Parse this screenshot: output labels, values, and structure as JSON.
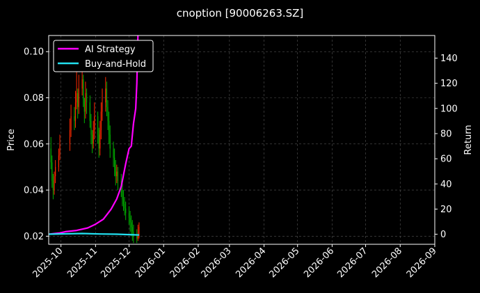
{
  "chart_data": {
    "type": "line",
    "title": "cnoption [90006263.SZ]",
    "ylabel_left": "Price",
    "ylabel_right": "Return",
    "x_ticks": [
      "2025-10",
      "2025-11",
      "2025-12",
      "2026-01",
      "2026-02",
      "2026-03",
      "2026-04",
      "2026-05",
      "2026-06",
      "2026-07",
      "2026-08",
      "2026-09"
    ],
    "x_range": [
      "2025-09-20",
      "2026-09-01"
    ],
    "y_left_range": [
      0.0165,
      0.107
    ],
    "y_left_ticks": [
      "0.02",
      "0.04",
      "0.06",
      "0.08",
      "0.10"
    ],
    "y_right_range": [
      -8,
      158
    ],
    "y_right_ticks": [
      "0",
      "20",
      "40",
      "60",
      "80",
      "100",
      "120",
      "140"
    ],
    "grid": true,
    "legend_position": "top-left",
    "colors": {
      "background": "#000000",
      "up": "#ff2a00",
      "down": "#00b000",
      "strategy": "#ff00ff",
      "buyhold": "#22e0f0"
    },
    "candles": {
      "dates": [
        "2025-09-22",
        "2025-09-23",
        "2025-09-24",
        "2025-09-25",
        "2025-09-26",
        "2025-09-29",
        "2025-09-30",
        "2025-10-09",
        "2025-10-10",
        "2025-10-13",
        "2025-10-14",
        "2025-10-15",
        "2025-10-16",
        "2025-10-17",
        "2025-10-20",
        "2025-10-21",
        "2025-10-22",
        "2025-10-23",
        "2025-10-24",
        "2025-10-27",
        "2025-10-28",
        "2025-10-29",
        "2025-10-30",
        "2025-10-31",
        "2025-11-03",
        "2025-11-04",
        "2025-11-05",
        "2025-11-06",
        "2025-11-07",
        "2025-11-10",
        "2025-11-11",
        "2025-11-12",
        "2025-11-13",
        "2025-11-14",
        "2025-11-17",
        "2025-11-18",
        "2025-11-19",
        "2025-11-20",
        "2025-11-21",
        "2025-11-24",
        "2025-11-25",
        "2025-11-26",
        "2025-11-27",
        "2025-11-28",
        "2025-12-01",
        "2025-12-02",
        "2025-12-03",
        "2025-12-04",
        "2025-12-05",
        "2025-12-08",
        "2025-12-09",
        "2025-12-10"
      ],
      "open": [
        0.058,
        0.052,
        0.044,
        0.04,
        0.046,
        0.05,
        0.055,
        0.06,
        0.066,
        0.072,
        0.07,
        0.078,
        0.082,
        0.076,
        0.084,
        0.088,
        0.08,
        0.074,
        0.082,
        0.078,
        0.07,
        0.064,
        0.06,
        0.066,
        0.072,
        0.064,
        0.058,
        0.066,
        0.074,
        0.078,
        0.084,
        0.076,
        0.07,
        0.064,
        0.058,
        0.054,
        0.05,
        0.046,
        0.048,
        0.044,
        0.04,
        0.036,
        0.034,
        0.032,
        0.03,
        0.028,
        0.026,
        0.024,
        0.022,
        0.02,
        0.019,
        0.02
      ],
      "close": [
        0.052,
        0.044,
        0.04,
        0.046,
        0.05,
        0.055,
        0.06,
        0.066,
        0.072,
        0.07,
        0.078,
        0.082,
        0.076,
        0.084,
        0.088,
        0.08,
        0.074,
        0.082,
        0.078,
        0.07,
        0.064,
        0.06,
        0.066,
        0.072,
        0.064,
        0.058,
        0.066,
        0.074,
        0.078,
        0.084,
        0.076,
        0.07,
        0.064,
        0.058,
        0.054,
        0.05,
        0.046,
        0.048,
        0.044,
        0.04,
        0.036,
        0.034,
        0.032,
        0.03,
        0.028,
        0.026,
        0.024,
        0.022,
        0.02,
        0.019,
        0.02,
        0.024
      ],
      "high": [
        0.063,
        0.055,
        0.047,
        0.048,
        0.053,
        0.058,
        0.064,
        0.071,
        0.077,
        0.076,
        0.083,
        0.097,
        0.084,
        0.09,
        0.096,
        0.09,
        0.08,
        0.087,
        0.084,
        0.081,
        0.073,
        0.066,
        0.07,
        0.078,
        0.074,
        0.067,
        0.07,
        0.078,
        0.084,
        0.089,
        0.087,
        0.079,
        0.074,
        0.068,
        0.061,
        0.058,
        0.053,
        0.051,
        0.05,
        0.047,
        0.044,
        0.04,
        0.037,
        0.035,
        0.033,
        0.031,
        0.029,
        0.027,
        0.025,
        0.023,
        0.025,
        0.026
      ],
      "low": [
        0.049,
        0.041,
        0.036,
        0.038,
        0.043,
        0.048,
        0.053,
        0.057,
        0.063,
        0.066,
        0.067,
        0.075,
        0.071,
        0.073,
        0.081,
        0.076,
        0.069,
        0.071,
        0.073,
        0.067,
        0.06,
        0.056,
        0.058,
        0.062,
        0.06,
        0.054,
        0.055,
        0.062,
        0.07,
        0.074,
        0.072,
        0.066,
        0.06,
        0.054,
        0.05,
        0.046,
        0.042,
        0.043,
        0.04,
        0.037,
        0.033,
        0.031,
        0.029,
        0.027,
        0.025,
        0.022,
        0.02,
        0.018,
        0.017,
        0.017,
        0.018,
        0.019
      ]
    },
    "series": [
      {
        "name": "AI Strategy",
        "y_axis": "right",
        "x": [
          "2025-09-20",
          "2025-09-30",
          "2025-10-05",
          "2025-10-15",
          "2025-10-25",
          "2025-11-01",
          "2025-11-08",
          "2025-11-15",
          "2025-11-20",
          "2025-11-24",
          "2025-11-26",
          "2025-11-28",
          "2025-12-01",
          "2025-12-03",
          "2025-12-05",
          "2025-12-07",
          "2025-12-08",
          "2025-12-09"
        ],
        "y": [
          0,
          1,
          2,
          3,
          5,
          8,
          12,
          20,
          28,
          38,
          47,
          56,
          68,
          70,
          88,
          100,
          120,
          158
        ]
      },
      {
        "name": "Buy-and-Hold",
        "y_axis": "right",
        "x": [
          "2025-09-20",
          "2025-10-05",
          "2025-10-20",
          "2025-11-05",
          "2025-11-20",
          "2025-12-10"
        ],
        "y": [
          0,
          0.3,
          0.6,
          0.2,
          0,
          -0.6
        ]
      }
    ]
  }
}
